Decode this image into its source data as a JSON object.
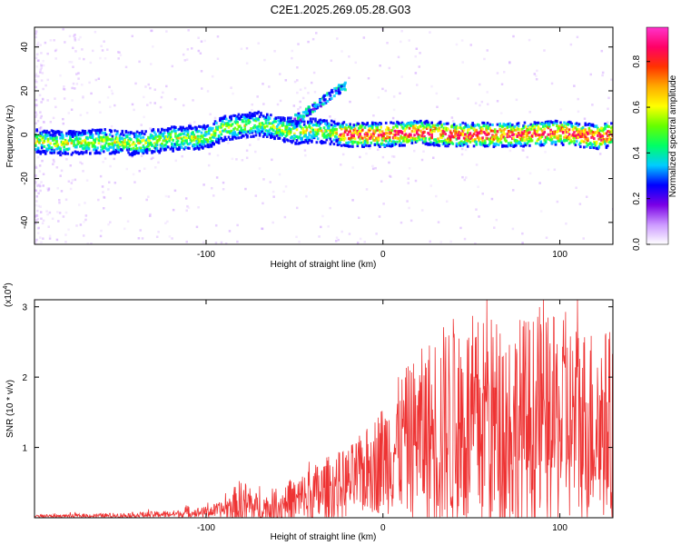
{
  "title": "C2E1.2025.269.05.28.G03",
  "chart_data": [
    {
      "type": "heatmap",
      "xlabel": "Height of straight line (km)",
      "ylabel": "Frequency (Hz)",
      "xlim": [
        -197,
        130
      ],
      "ylim": [
        -50,
        49
      ],
      "xticks": [
        -100,
        0,
        100
      ],
      "yticks": [
        -40,
        -20,
        0,
        20,
        40
      ],
      "xtick_labels": [
        "-100",
        "0",
        "100"
      ],
      "ytick_labels": [
        "-40",
        "-20",
        "0",
        "20",
        "40"
      ],
      "colorbar": {
        "label": "Normalized spectral amplitude",
        "range": [
          0,
          0.95
        ],
        "ticks": [
          0,
          0.2,
          0.4,
          0.6,
          0.8
        ],
        "tick_labels": [
          "0.0",
          "0.2",
          "0.4",
          "0.6",
          "0.8"
        ],
        "colors": [
          "#ffffff",
          "#cc99ff",
          "#7a00e6",
          "#0000ff",
          "#00ccff",
          "#00ff66",
          "#66ff00",
          "#ffff00",
          "#ffaa00",
          "#ff3300",
          "#ff0066",
          "#ff33cc"
        ]
      },
      "ridge_center_hz": 0,
      "ridge": [
        {
          "x": -197,
          "f": -3
        },
        {
          "x": -180,
          "f": -4
        },
        {
          "x": -160,
          "f": -3
        },
        {
          "x": -140,
          "f": -4
        },
        {
          "x": -120,
          "f": -2
        },
        {
          "x": -100,
          "f": -1
        },
        {
          "x": -90,
          "f": 3
        },
        {
          "x": -80,
          "f": 4
        },
        {
          "x": -70,
          "f": 5
        },
        {
          "x": -60,
          "f": 3
        },
        {
          "x": -50,
          "f": 1
        },
        {
          "x": -40,
          "f": 2
        },
        {
          "x": -30,
          "f": 1
        },
        {
          "x": -20,
          "f": 0
        },
        {
          "x": 0,
          "f": 0
        },
        {
          "x": 20,
          "f": 1
        },
        {
          "x": 40,
          "f": 0
        },
        {
          "x": 60,
          "f": 0
        },
        {
          "x": 80,
          "f": 0
        },
        {
          "x": 100,
          "f": 1
        },
        {
          "x": 120,
          "f": -1
        },
        {
          "x": 130,
          "f": 0
        }
      ],
      "branch": [
        {
          "x": -55,
          "f": 6
        },
        {
          "x": -45,
          "f": 10
        },
        {
          "x": -35,
          "f": 16
        },
        {
          "x": -28,
          "f": 20
        },
        {
          "x": -22,
          "f": 23
        }
      ]
    },
    {
      "type": "line",
      "xlabel": "Height of straight line (km)",
      "ylabel": "SNR (10 * v/v)",
      "y_multiplier_label": "(x10",
      "y_multiplier_exp": "4",
      "y_multiplier_close": ")",
      "xlim": [
        -197,
        130
      ],
      "ylim": [
        0,
        3.1
      ],
      "xticks": [
        -100,
        0,
        100
      ],
      "yticks": [
        1,
        2,
        3
      ],
      "xtick_labels": [
        "-100",
        "0",
        "100"
      ],
      "ytick_labels": [
        "1",
        "2",
        "3"
      ],
      "color": "#ee3333",
      "envelope": {
        "x": [
          -197,
          -150,
          -120,
          -100,
          -90,
          -80,
          -70,
          -60,
          -50,
          -40,
          -30,
          -20,
          -10,
          0,
          10,
          20,
          30,
          40,
          60,
          80,
          100,
          120,
          130
        ],
        "baseline": [
          0.02,
          0.03,
          0.05,
          0.08,
          0.12,
          0.18,
          0.12,
          0.15,
          0.22,
          0.3,
          0.4,
          0.5,
          0.65,
          0.85,
          1.05,
          1.15,
          1.2,
          1.3,
          1.3,
          1.3,
          1.35,
          1.35,
          1.3
        ],
        "spread": [
          0.02,
          0.04,
          0.05,
          0.08,
          0.12,
          0.4,
          0.2,
          0.3,
          0.35,
          0.45,
          0.5,
          0.5,
          0.6,
          0.8,
          1.0,
          1.2,
          1.5,
          1.6,
          1.6,
          1.6,
          1.5,
          1.4,
          1.4
        ]
      }
    }
  ]
}
